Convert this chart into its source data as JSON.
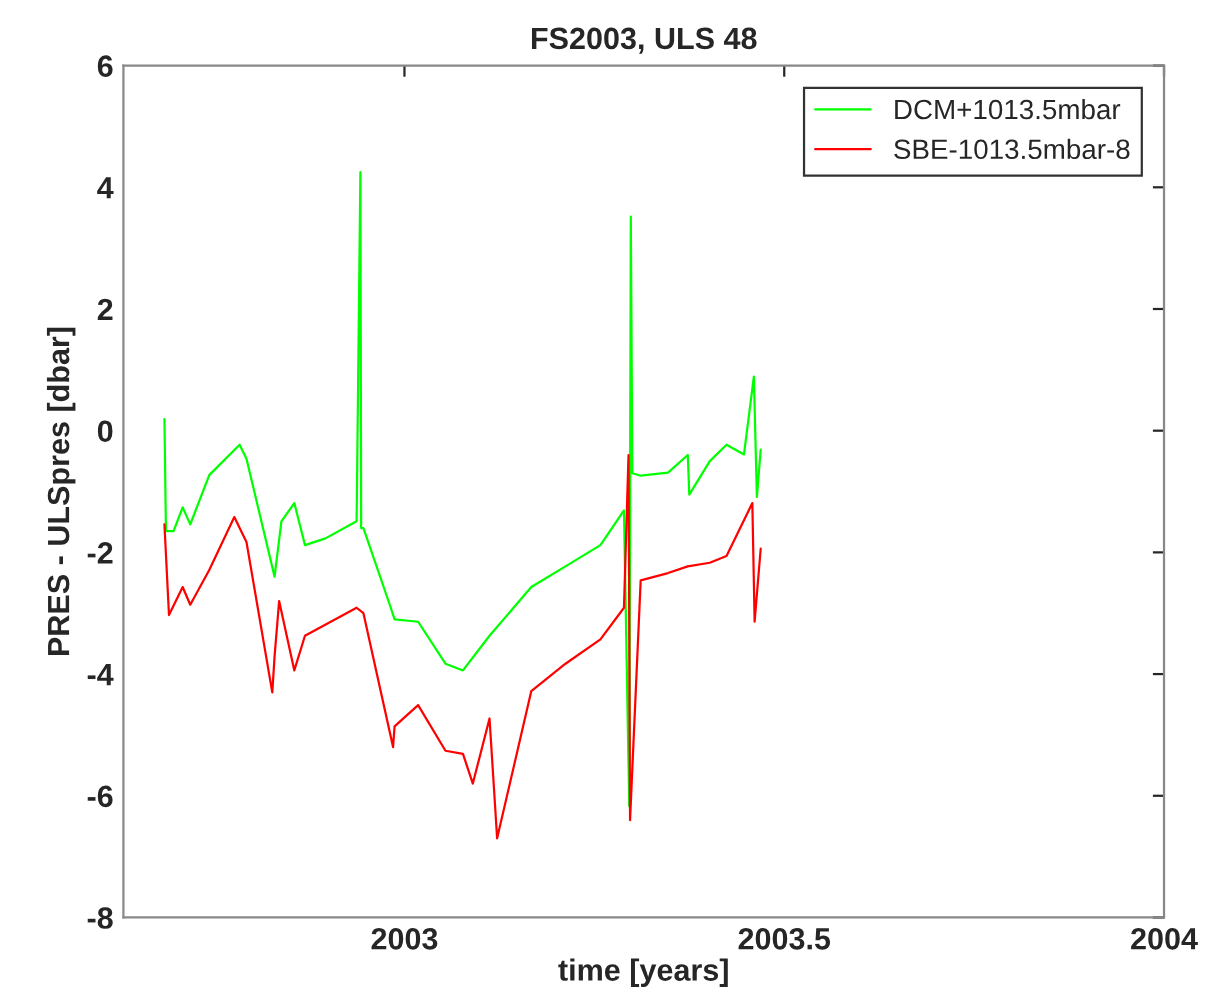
{
  "chart_data": {
    "type": "line",
    "title": "FS2003, ULS 48",
    "xlabel": "time [years]",
    "ylabel": "PRES - ULSpres [dbar]",
    "xlim": [
      2002.63,
      2004
    ],
    "xticks": [
      2003,
      2003.5,
      2004
    ],
    "ylim": [
      -8,
      6
    ],
    "yticks": [
      -8,
      -6,
      -4,
      -2,
      0,
      2,
      4,
      6
    ],
    "grid": false,
    "legend": "top right",
    "marker": "none",
    "line_style": "solid",
    "series": [
      {
        "name": "DCM+1013.5mbar",
        "color": "#00ff00",
        "x": [
          2002.684,
          2002.686,
          2002.696,
          2002.708,
          2002.718,
          2002.743,
          2002.783,
          2002.792,
          2002.829,
          2002.838,
          2002.855,
          2002.869,
          2002.896,
          2002.937,
          2002.942,
          2002.943,
          2002.946,
          2002.982,
          2002.987,
          2003.018,
          2003.054,
          2003.077,
          2003.112,
          2003.167,
          2003.212,
          2003.258,
          2003.289,
          2003.296,
          2003.298,
          2003.3,
          2003.311,
          2003.347,
          2003.373,
          2003.375,
          2003.402,
          2003.424,
          2003.447,
          2003.46,
          2003.464,
          2003.469
        ],
        "values": [
          0.19,
          -1.65,
          -1.65,
          -1.26,
          -1.54,
          -0.73,
          -0.23,
          -0.46,
          -2.4,
          -1.49,
          -1.19,
          -1.88,
          -1.77,
          -1.49,
          4.25,
          -1.6,
          -1.6,
          -2.91,
          -3.1,
          -3.14,
          -3.83,
          -3.94,
          -3.37,
          -2.57,
          -2.23,
          -1.88,
          -1.31,
          -6.17,
          3.52,
          -0.7,
          -0.74,
          -0.69,
          -0.4,
          -1.05,
          -0.5,
          -0.23,
          -0.39,
          0.89,
          -1.09,
          -0.31
        ]
      },
      {
        "name": "SBE-1013.5mbar-8",
        "color": "#ff0000",
        "x": [
          2002.684,
          2002.69,
          2002.708,
          2002.718,
          2002.743,
          2002.776,
          2002.792,
          2002.826,
          2002.829,
          2002.835,
          2002.855,
          2002.869,
          2002.937,
          2002.946,
          2002.985,
          2002.987,
          2003.018,
          2003.054,
          2003.077,
          2003.09,
          2003.112,
          2003.122,
          2003.167,
          2003.212,
          2003.258,
          2003.289,
          2003.295,
          2003.297,
          2003.311,
          2003.347,
          2003.373,
          2003.402,
          2003.424,
          2003.458,
          2003.461,
          2003.469
        ],
        "values": [
          -1.54,
          -3.03,
          -2.57,
          -2.86,
          -2.29,
          -1.42,
          -1.83,
          -4.3,
          -3.71,
          -2.8,
          -3.94,
          -3.37,
          -2.91,
          -3.0,
          -5.2,
          -4.86,
          -4.51,
          -5.26,
          -5.31,
          -5.8,
          -4.73,
          -6.7,
          -4.28,
          -3.83,
          -3.43,
          -2.91,
          -0.4,
          -6.4,
          -2.46,
          -2.34,
          -2.23,
          -2.17,
          -2.06,
          -1.19,
          -3.14,
          -1.94
        ]
      }
    ]
  }
}
